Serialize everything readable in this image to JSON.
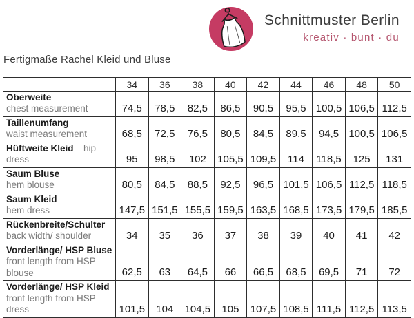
{
  "brand": {
    "name": "Schnittmuster Berlin",
    "tagline": "kreativ · bunt · du",
    "logo_icon": "dress-on-hanger-icon",
    "logo_color": "#c53b63",
    "tagline_color": "#b5566f"
  },
  "page_title": "Fertigmaße Rachel Kleid und Bluse",
  "table": {
    "sizes": [
      "34",
      "36",
      "38",
      "40",
      "42",
      "44",
      "46",
      "48",
      "50"
    ],
    "rows": [
      {
        "de": "Oberweite",
        "en": "chest measurement",
        "values": [
          "74,5",
          "78,5",
          "82,5",
          "86,5",
          "90,5",
          "95,5",
          "100,5",
          "106,5",
          "112,5"
        ]
      },
      {
        "de": "Taillenumfang",
        "en": "waist measurement",
        "values": [
          "68,5",
          "72,5",
          "76,5",
          "80,5",
          "84,5",
          "89,5",
          "94,5",
          "100,5",
          "106,5"
        ]
      },
      {
        "de": "Hüftweite Kleid",
        "en": "hip dress",
        "en_split": [
          "hip",
          "dress"
        ],
        "values": [
          "95",
          "98,5",
          "102",
          "105,5",
          "109,5",
          "114",
          "118,5",
          "125",
          "131"
        ]
      },
      {
        "de": "Saum Bluse",
        "en": "hem blouse",
        "values": [
          "80,5",
          "84,5",
          "88,5",
          "92,5",
          "96,5",
          "101,5",
          "106,5",
          "112,5",
          "118,5"
        ]
      },
      {
        "de": "Saum Kleid",
        "en": "hem dress",
        "values": [
          "147,5",
          "151,5",
          "155,5",
          "159,5",
          "163,5",
          "168,5",
          "173,5",
          "179,5",
          "185,5"
        ]
      },
      {
        "de": "Rückenbreite/Schulter",
        "en": "back width/ shoulder",
        "values": [
          "34",
          "35",
          "36",
          "37",
          "38",
          "39",
          "40",
          "41",
          "42"
        ]
      },
      {
        "de": "Vorderlänge/ HSP Bluse",
        "en": "front length from HSP blouse",
        "values": [
          "62,5",
          "63",
          "64,5",
          "66",
          "66,5",
          "68,5",
          "69,5",
          "71",
          "72"
        ]
      },
      {
        "de": "Vorderlänge/ HSP Kleid",
        "en": "front length from HSP dress",
        "values": [
          "101,5",
          "104",
          "104,5",
          "105",
          "107,5",
          "108,5",
          "111,5",
          "112,5",
          "113,5"
        ]
      }
    ]
  }
}
